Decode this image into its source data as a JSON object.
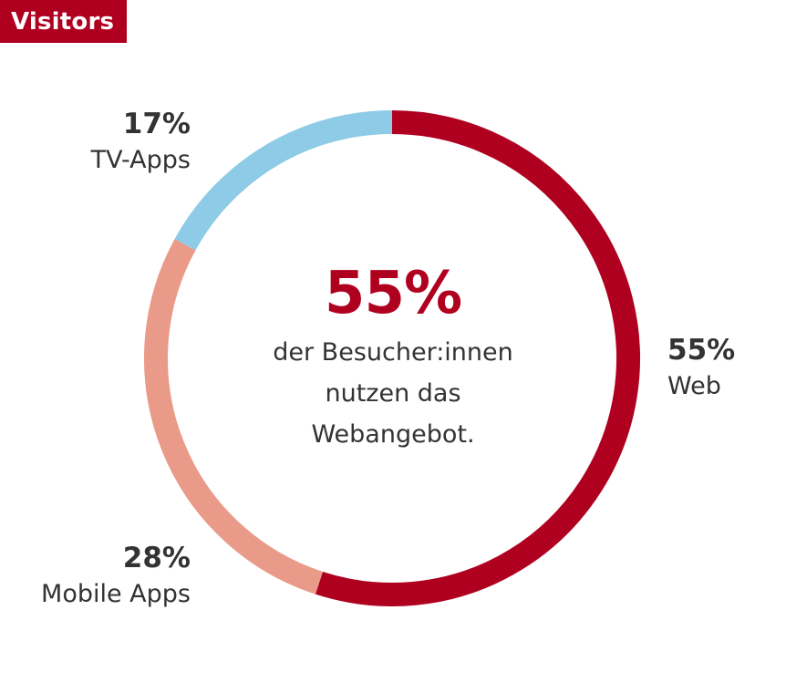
{
  "title": "Visitors",
  "colors": {
    "brand": "#b00020",
    "web": "#b00020",
    "mobile": "#e99a88",
    "tv": "#8ecbe6",
    "text": "#333333"
  },
  "center": {
    "value": "55%",
    "line1": "der Besucher:innen",
    "line2": "nutzen das",
    "line3": "Webangebot."
  },
  "chart_data": {
    "type": "pie",
    "title": "Visitors",
    "donut": true,
    "start": "top, clockwise",
    "series": [
      {
        "name": "Visitors",
        "values": [
          {
            "label": "Web",
            "value": 55,
            "display": "55%",
            "color": "#b00020"
          },
          {
            "label": "Mobile Apps",
            "value": 28,
            "display": "28%",
            "color": "#e99a88"
          },
          {
            "label": "TV-Apps",
            "value": 17,
            "display": "17%",
            "color": "#8ecbe6"
          }
        ]
      }
    ]
  }
}
